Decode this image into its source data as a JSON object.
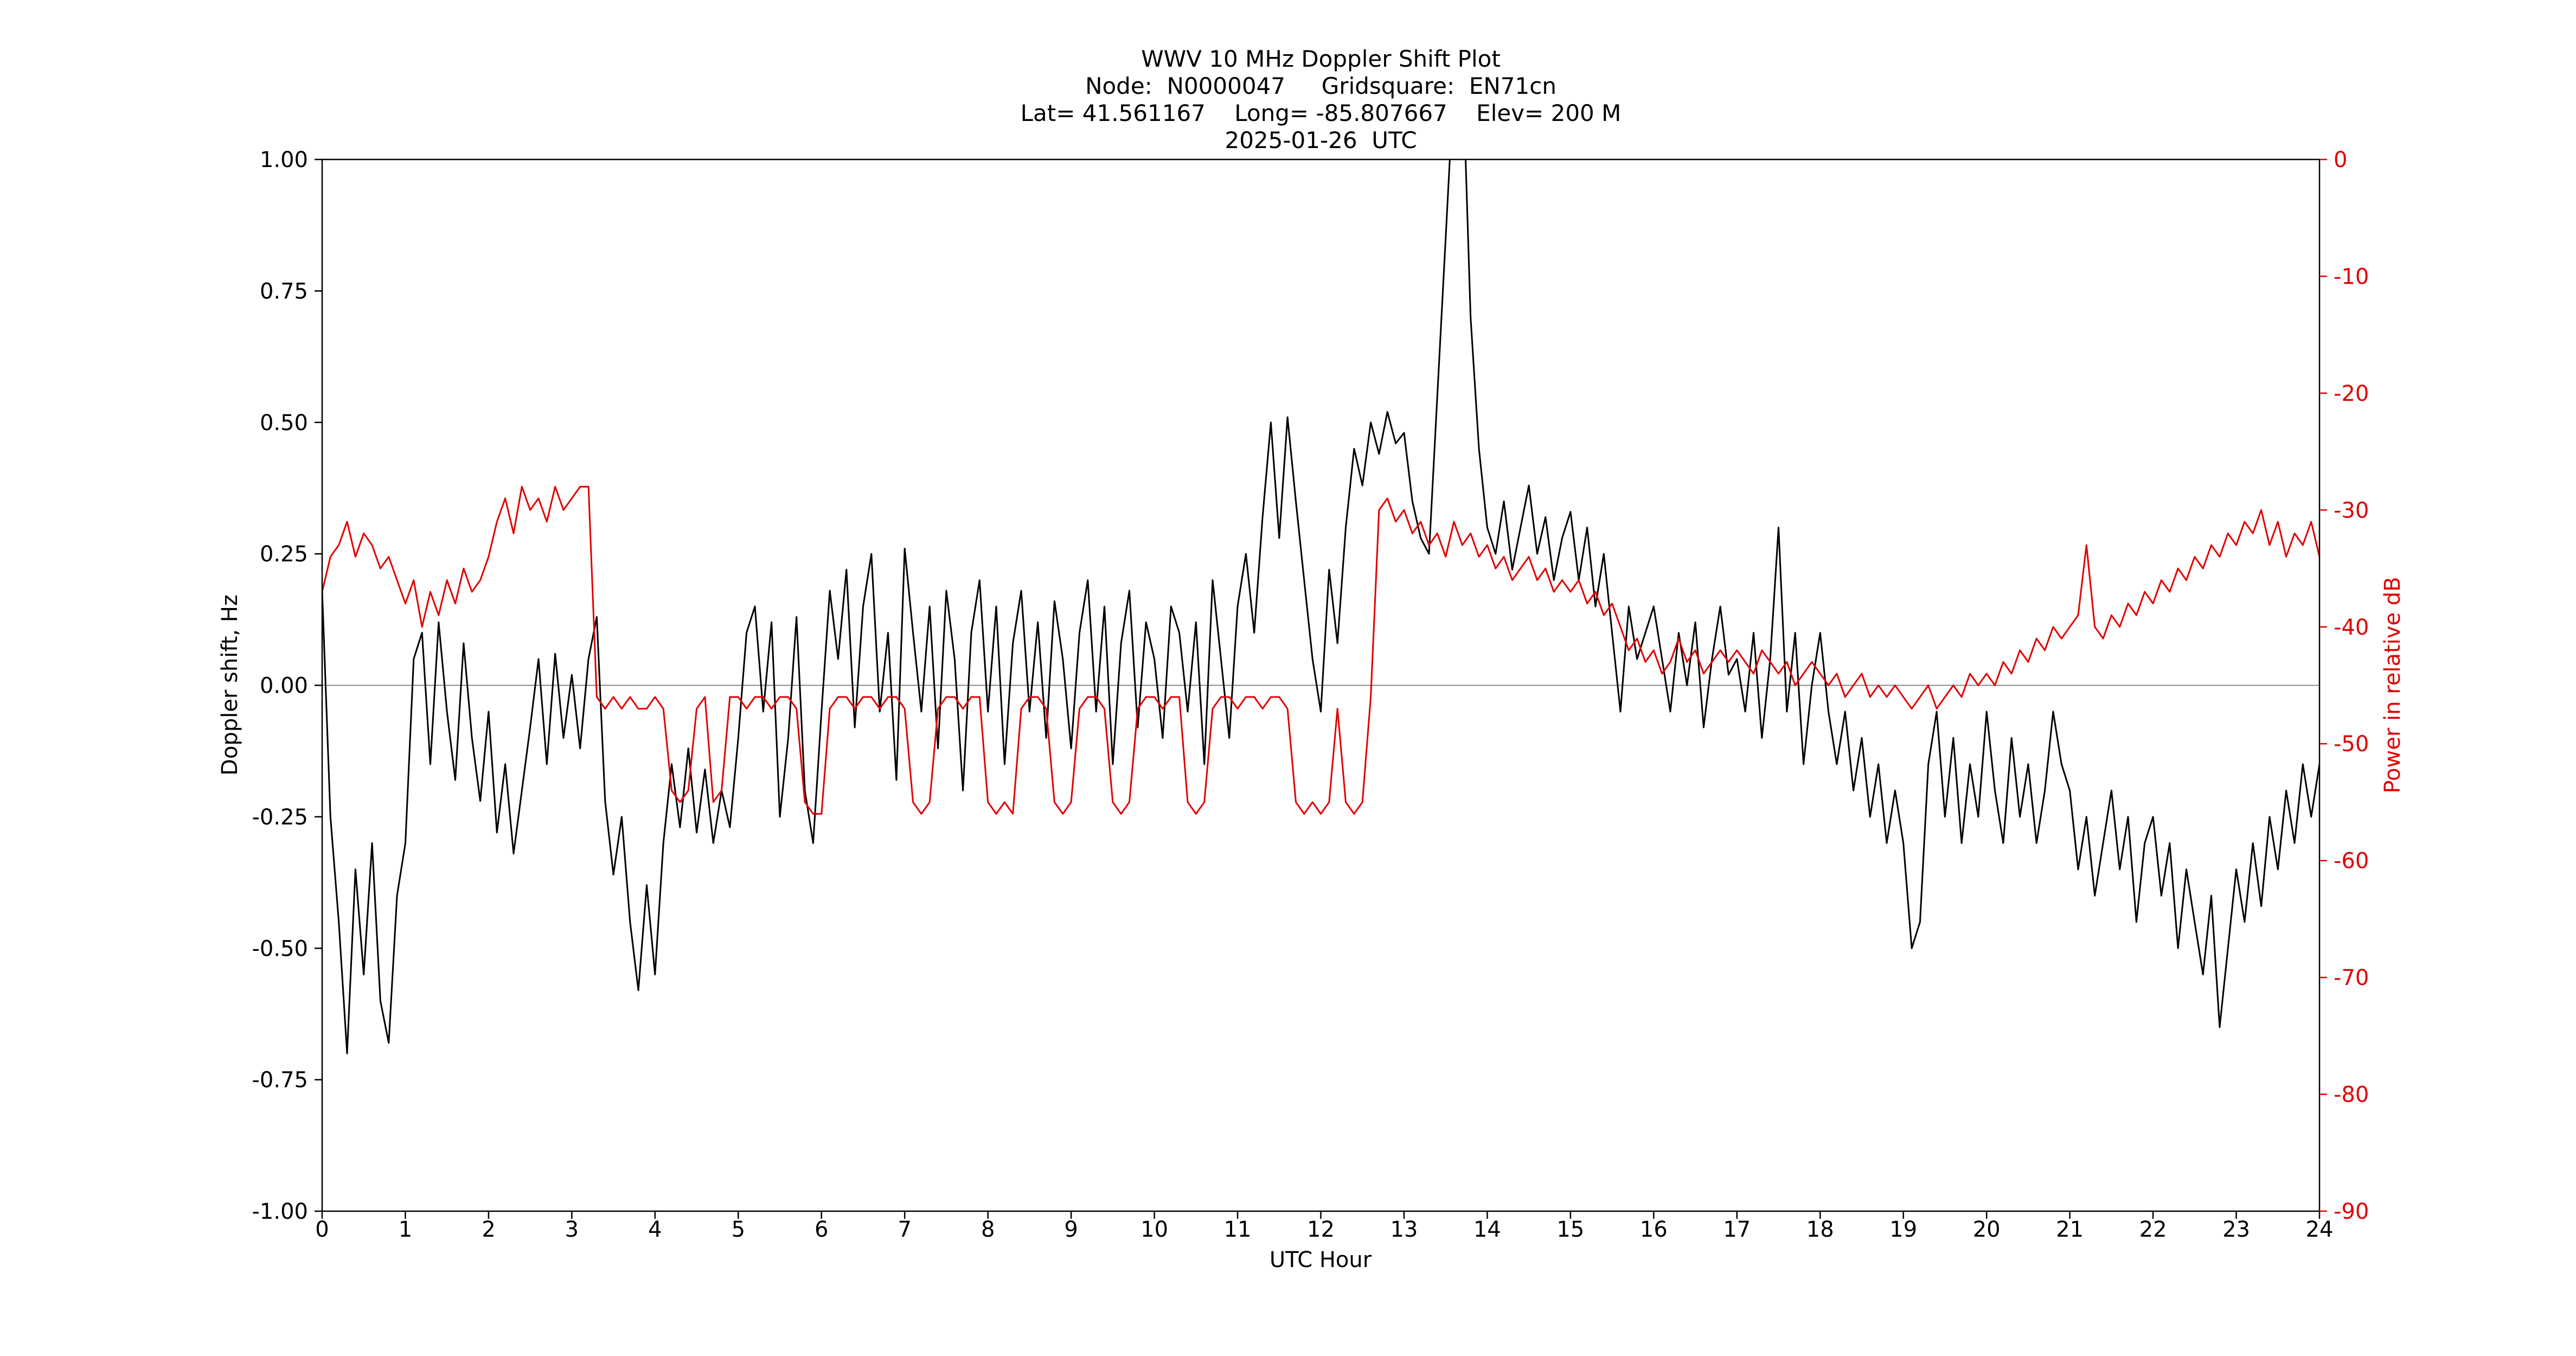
{
  "figure": {
    "title_lines": [
      "WWV 10 MHz Doppler Shift Plot",
      "Node:  N0000047     Gridsquare:  EN71cn",
      "Lat= 41.561167    Long= -85.807667    Elev= 200 M",
      "2025-01-26  UTC"
    ]
  },
  "station": {
    "node": "N0000047",
    "gridsquare": "EN71cn",
    "lat": "41.561167",
    "long": "-85.807667",
    "elev": "200 M",
    "date": "2025-01-26",
    "timezone": "UTC"
  },
  "colors": {
    "doppler_black": "#000000",
    "power_red": "#e00000",
    "axis": "#000000",
    "zero_line": "#888888",
    "background": "#ffffff"
  },
  "chart_data": {
    "type": "line",
    "title": "WWV 10 MHz Doppler Shift Plot",
    "xlabel": "UTC Hour",
    "ylabel_left": "Doppler shift, Hz",
    "ylabel_right": "Power in relative dB",
    "grid": false,
    "legend": "none",
    "x_range": [
      0,
      24
    ],
    "y_left_range": [
      -1.0,
      1.0
    ],
    "y_right_range": [
      -90,
      0
    ],
    "x_ticks": {
      "values": [
        0,
        1,
        2,
        3,
        4,
        5,
        6,
        7,
        8,
        9,
        10,
        11,
        12,
        13,
        14,
        15,
        16,
        17,
        18,
        19,
        20,
        21,
        22,
        23,
        24
      ],
      "labels": [
        "0",
        "1",
        "2",
        "3",
        "4",
        "5",
        "6",
        "7",
        "8",
        "9",
        "10",
        "11",
        "12",
        "13",
        "14",
        "15",
        "16",
        "17",
        "18",
        "19",
        "20",
        "21",
        "22",
        "23",
        "24"
      ]
    },
    "y_left_ticks": {
      "values": [
        1.0,
        0.75,
        0.5,
        0.25,
        0.0,
        -0.25,
        -0.5,
        -0.75,
        -1.0
      ],
      "labels": [
        "1.00",
        "0.75",
        "0.50",
        "0.25",
        "0.00",
        "-0.25",
        "-0.50",
        "-0.75",
        "-1.00"
      ]
    },
    "y_right_ticks": {
      "values": [
        0,
        -10,
        -20,
        -30,
        -40,
        -50,
        -60,
        -70,
        -80,
        -90
      ],
      "labels": [
        "0",
        "-10",
        "-20",
        "-30",
        "-40",
        "-50",
        "-60",
        "-70",
        "-80",
        "-90"
      ]
    },
    "zero_line": {
      "value": 0.0,
      "axis": "left",
      "color": "#888888"
    },
    "x_start": 0.0,
    "sample_interval_hours": 0.1,
    "series": [
      {
        "name": "Doppler shift",
        "axis": "left",
        "color": "#000000",
        "values": [
          0.18,
          -0.25,
          -0.45,
          -0.7,
          -0.35,
          -0.55,
          -0.3,
          -0.6,
          -0.68,
          -0.4,
          -0.3,
          0.05,
          0.1,
          -0.15,
          0.12,
          -0.05,
          -0.18,
          0.08,
          -0.1,
          -0.22,
          -0.05,
          -0.28,
          -0.15,
          -0.32,
          -0.2,
          -0.08,
          0.05,
          -0.15,
          0.06,
          -0.1,
          0.02,
          -0.12,
          0.05,
          0.13,
          -0.22,
          -0.36,
          -0.25,
          -0.45,
          -0.58,
          -0.38,
          -0.55,
          -0.3,
          -0.15,
          -0.27,
          -0.12,
          -0.28,
          -0.16,
          -0.3,
          -0.2,
          -0.27,
          -0.1,
          0.1,
          0.15,
          -0.05,
          0.12,
          -0.25,
          -0.1,
          0.13,
          -0.2,
          -0.3,
          -0.05,
          0.18,
          0.05,
          0.22,
          -0.08,
          0.15,
          0.25,
          -0.05,
          0.1,
          -0.18,
          0.26,
          0.1,
          -0.05,
          0.15,
          -0.12,
          0.18,
          0.05,
          -0.2,
          0.1,
          0.2,
          -0.05,
          0.15,
          -0.15,
          0.08,
          0.18,
          -0.05,
          0.12,
          -0.1,
          0.16,
          0.05,
          -0.12,
          0.1,
          0.2,
          -0.05,
          0.15,
          -0.15,
          0.08,
          0.18,
          -0.08,
          0.12,
          0.05,
          -0.1,
          0.15,
          0.1,
          -0.05,
          0.12,
          -0.15,
          0.2,
          0.05,
          -0.1,
          0.15,
          0.25,
          0.1,
          0.32,
          0.5,
          0.28,
          0.51,
          0.35,
          0.2,
          0.05,
          -0.05,
          0.22,
          0.08,
          0.3,
          0.45,
          0.38,
          0.5,
          0.44,
          0.52,
          0.46,
          0.48,
          0.35,
          0.28,
          0.25,
          0.55,
          0.85,
          1.15,
          1.2,
          0.7,
          0.45,
          0.3,
          0.25,
          0.35,
          0.22,
          0.3,
          0.38,
          0.25,
          0.32,
          0.2,
          0.28,
          0.33,
          0.2,
          0.3,
          0.15,
          0.25,
          0.1,
          -0.05,
          0.15,
          0.05,
          0.1,
          0.15,
          0.05,
          -0.05,
          0.1,
          0.0,
          0.12,
          -0.08,
          0.05,
          0.15,
          0.02,
          0.05,
          -0.05,
          0.1,
          -0.1,
          0.05,
          0.3,
          -0.05,
          0.1,
          -0.15,
          0.0,
          0.1,
          -0.05,
          -0.15,
          -0.05,
          -0.2,
          -0.1,
          -0.25,
          -0.15,
          -0.3,
          -0.2,
          -0.3,
          -0.5,
          -0.45,
          -0.15,
          -0.05,
          -0.25,
          -0.1,
          -0.3,
          -0.15,
          -0.25,
          -0.05,
          -0.2,
          -0.3,
          -0.1,
          -0.25,
          -0.15,
          -0.3,
          -0.2,
          -0.05,
          -0.15,
          -0.2,
          -0.35,
          -0.25,
          -0.4,
          -0.3,
          -0.2,
          -0.35,
          -0.25,
          -0.45,
          -0.3,
          -0.25,
          -0.4,
          -0.3,
          -0.5,
          -0.35,
          -0.45,
          -0.55,
          -0.4,
          -0.65,
          -0.5,
          -0.35,
          -0.45,
          -0.3,
          -0.42,
          -0.25,
          -0.35,
          -0.2,
          -0.3,
          -0.15,
          -0.25,
          -0.15
        ]
      },
      {
        "name": "Power",
        "axis": "right",
        "color": "#e00000",
        "values": [
          -37,
          -34,
          -33,
          -31,
          -34,
          -32,
          -33,
          -35,
          -34,
          -36,
          -38,
          -36,
          -40,
          -37,
          -39,
          -36,
          -38,
          -35,
          -37,
          -36,
          -34,
          -31,
          -29,
          -32,
          -28,
          -30,
          -29,
          -31,
          -28,
          -30,
          -29,
          -28,
          -28,
          -46,
          -47,
          -46,
          -47,
          -46,
          -47,
          -47,
          -46,
          -47,
          -54,
          -55,
          -54,
          -47,
          -46,
          -55,
          -54,
          -46,
          -46,
          -47,
          -46,
          -46,
          -47,
          -46,
          -46,
          -47,
          -55,
          -56,
          -56,
          -47,
          -46,
          -46,
          -47,
          -46,
          -46,
          -47,
          -46,
          -46,
          -47,
          -55,
          -56,
          -55,
          -47,
          -46,
          -46,
          -47,
          -46,
          -46,
          -55,
          -56,
          -55,
          -56,
          -47,
          -46,
          -46,
          -47,
          -55,
          -56,
          -55,
          -47,
          -46,
          -46,
          -47,
          -55,
          -56,
          -55,
          -47,
          -46,
          -46,
          -47,
          -46,
          -46,
          -55,
          -56,
          -55,
          -47,
          -46,
          -46,
          -47,
          -46,
          -46,
          -47,
          -46,
          -46,
          -47,
          -55,
          -56,
          -55,
          -56,
          -55,
          -47,
          -55,
          -56,
          -55,
          -46,
          -30,
          -29,
          -31,
          -30,
          -32,
          -31,
          -33,
          -32,
          -34,
          -31,
          -33,
          -32,
          -34,
          -33,
          -35,
          -34,
          -36,
          -35,
          -34,
          -36,
          -35,
          -37,
          -36,
          -37,
          -36,
          -38,
          -37,
          -39,
          -38,
          -40,
          -42,
          -41,
          -43,
          -42,
          -44,
          -43,
          -41,
          -43,
          -42,
          -44,
          -43,
          -42,
          -43,
          -42,
          -43,
          -44,
          -42,
          -43,
          -44,
          -43,
          -45,
          -44,
          -43,
          -44,
          -45,
          -44,
          -46,
          -45,
          -44,
          -46,
          -45,
          -46,
          -45,
          -46,
          -47,
          -46,
          -45,
          -47,
          -46,
          -45,
          -46,
          -44,
          -45,
          -44,
          -45,
          -43,
          -44,
          -42,
          -43,
          -41,
          -42,
          -40,
          -41,
          -40,
          -39,
          -33,
          -40,
          -41,
          -39,
          -40,
          -38,
          -39,
          -37,
          -38,
          -36,
          -37,
          -35,
          -36,
          -34,
          -35,
          -33,
          -34,
          -32,
          -33,
          -31,
          -32,
          -30,
          -33,
          -31,
          -34,
          -32,
          -33,
          -31,
          -34
        ]
      }
    ]
  }
}
